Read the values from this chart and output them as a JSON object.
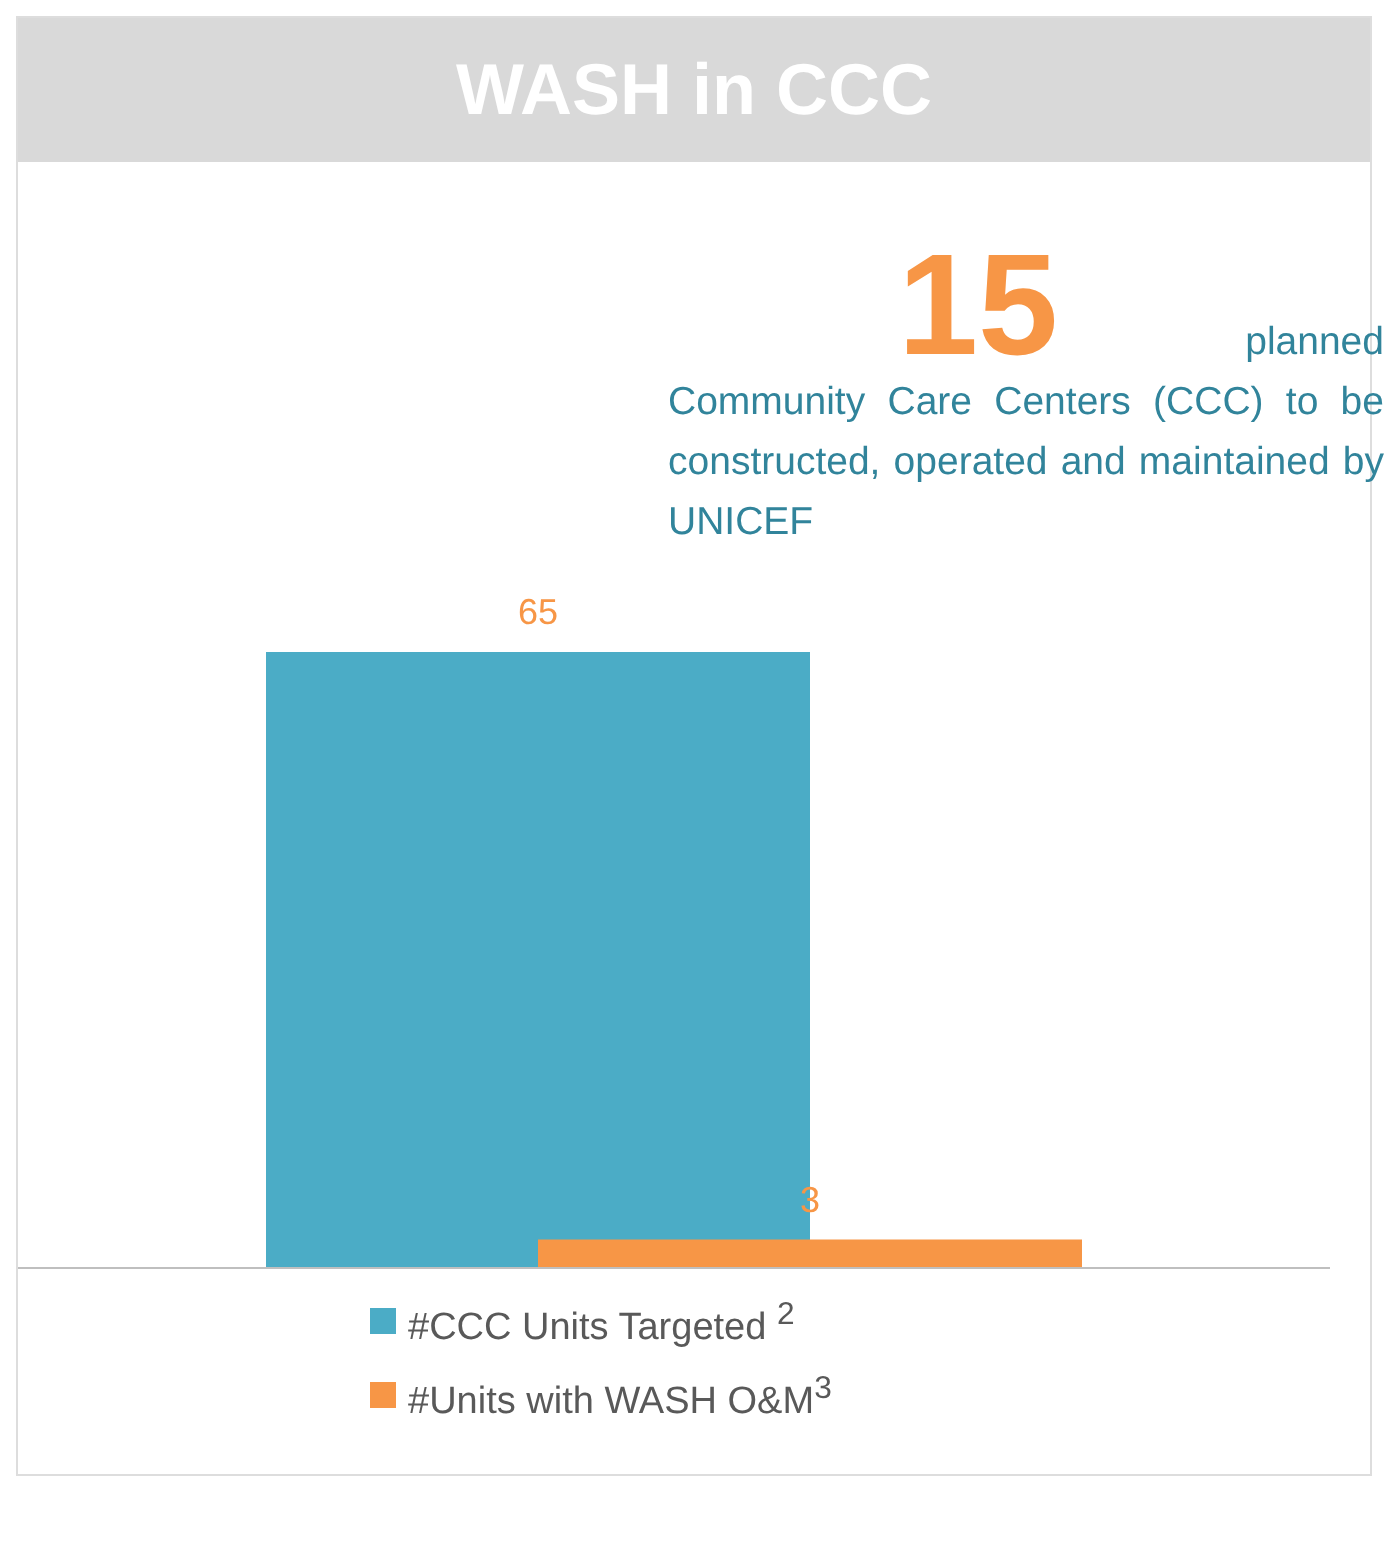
{
  "chart_data": {
    "type": "bar",
    "title": "WASH in CCC",
    "annotations": [
      "15",
      "planned Community Care Centers (CCC) to be constructed, operated and maintained by UNICEF"
    ],
    "categories": [
      null
    ],
    "series": [
      {
        "name": "#CCC Units Targeted $^{2}$",
        "color": "#4bacc6",
        "values": [
          65
        ]
      },
      {
        "name": "#Units with WASH O&M$^{3}$",
        "color": "#f79646",
        "values": [
          3
        ]
      }
    ],
    "data_labels": true,
    "legend": "bottom"
  }
}
